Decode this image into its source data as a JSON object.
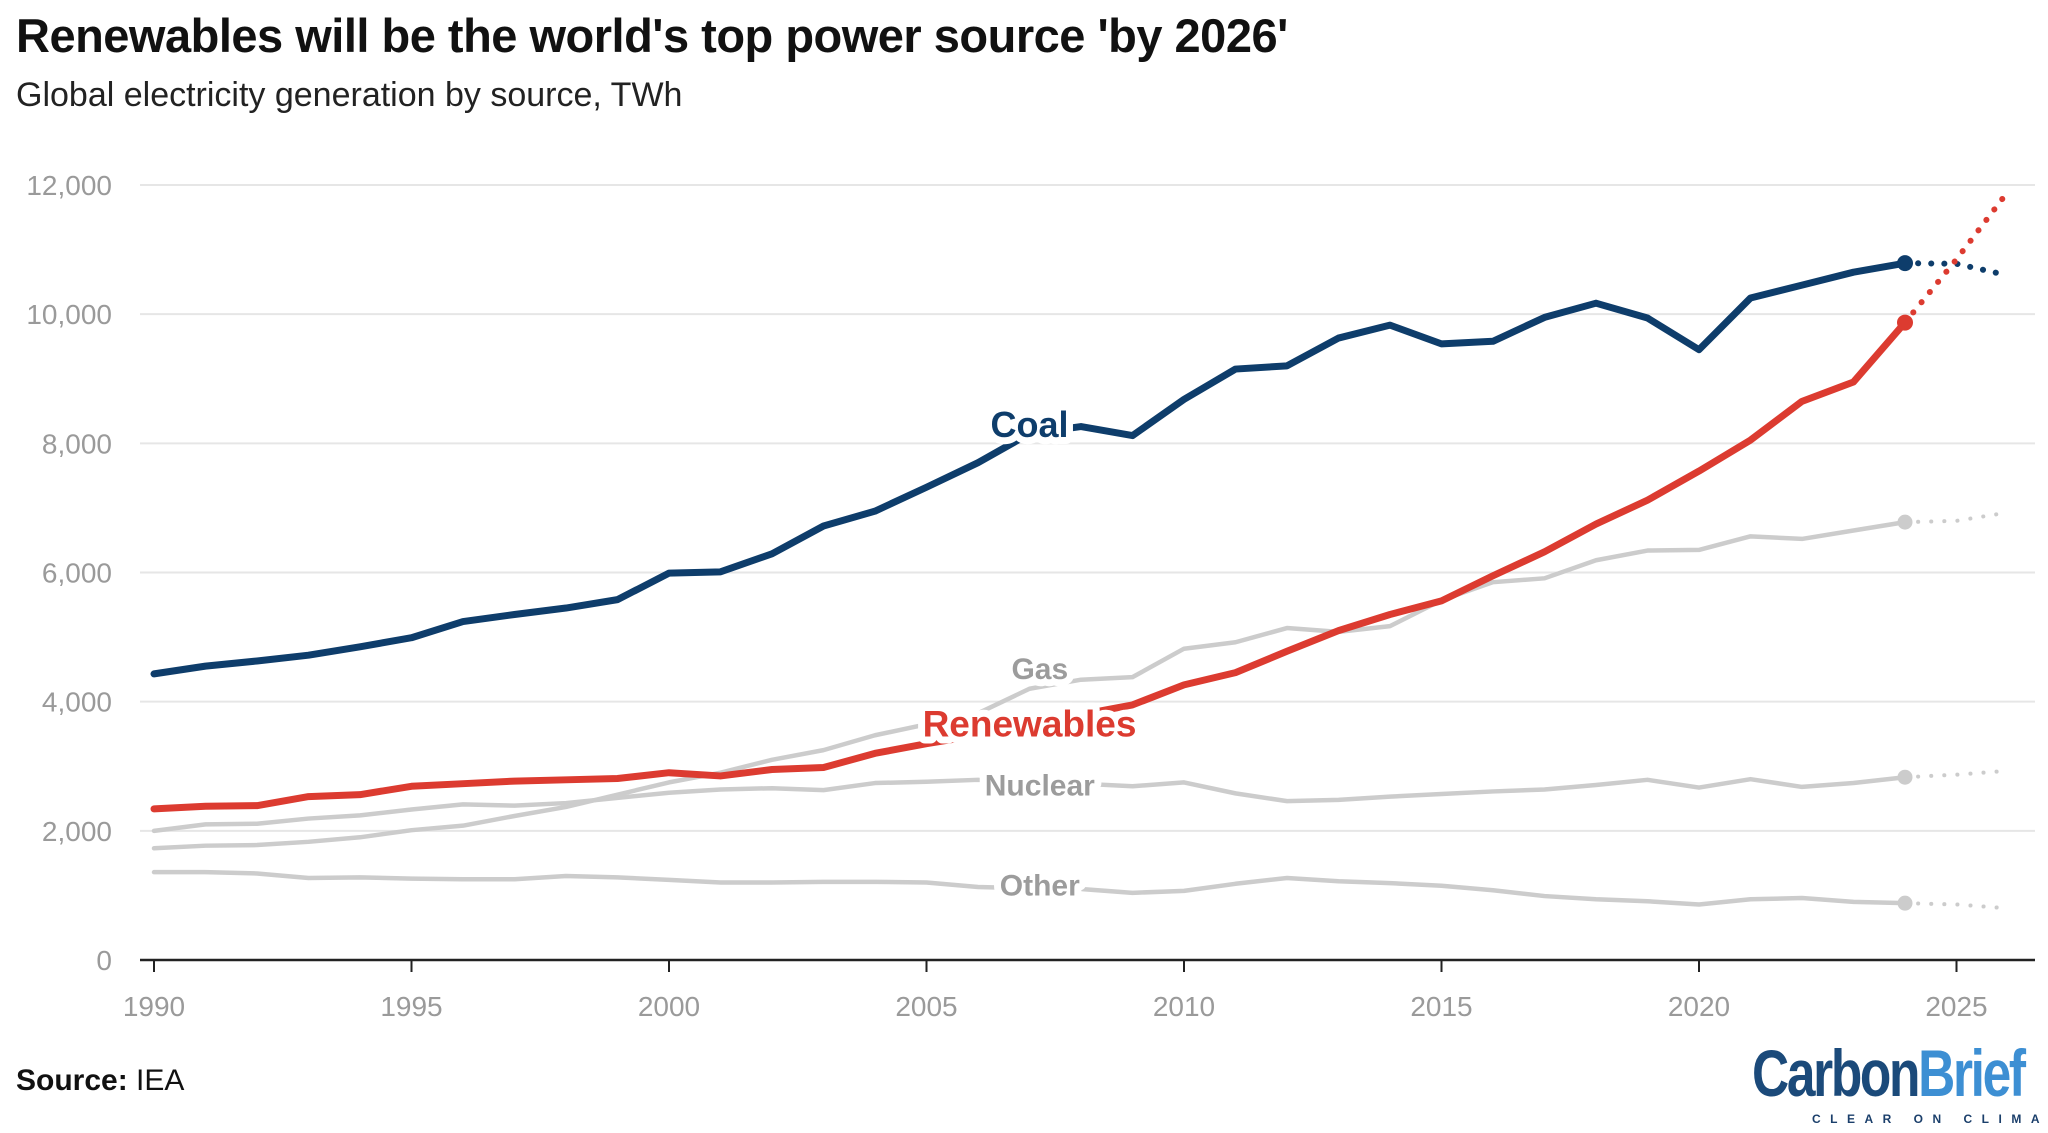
{
  "title": "Renewables will be the world's top power source 'by 2026'",
  "subtitle": "Global electricity generation by source, TWh",
  "source_label": "Source:",
  "source_value": "IEA",
  "logo": {
    "word1": "Carbon",
    "word2": "Brief",
    "tagline": "CLEAR ON CLIMATE"
  },
  "chart_data": {
    "type": "line",
    "title": "Renewables will be the world's top power source 'by 2026'",
    "ylabel": "Global electricity generation by source, TWh",
    "xlim": [
      1990,
      2026.5
    ],
    "ylim": [
      0,
      12000
    ],
    "grid": true,
    "x_ticks": [
      1990,
      1995,
      2000,
      2005,
      2010,
      2015,
      2020,
      2025
    ],
    "y_ticks": [
      0,
      2000,
      4000,
      6000,
      8000,
      10000,
      12000
    ],
    "y_tick_labels": [
      "0",
      "2,000",
      "4,000",
      "6,000",
      "8,000",
      "10,000",
      "12,000"
    ],
    "x": [
      1990,
      1991,
      1992,
      1993,
      1994,
      1995,
      1996,
      1997,
      1998,
      1999,
      2000,
      2001,
      2002,
      2003,
      2004,
      2005,
      2006,
      2007,
      2008,
      2009,
      2010,
      2011,
      2012,
      2013,
      2014,
      2015,
      2016,
      2017,
      2018,
      2019,
      2020,
      2021,
      2022,
      2023,
      2024
    ],
    "forecast_x": [
      2024,
      2025,
      2026
    ],
    "series": [
      {
        "name": "Coal",
        "color": "#0e3d6b",
        "highlight": true,
        "values": [
          4430,
          4550,
          4630,
          4720,
          4850,
          4990,
          5240,
          5350,
          5450,
          5580,
          5990,
          6010,
          6290,
          6720,
          6950,
          7320,
          7700,
          8150,
          8260,
          8120,
          8680,
          9150,
          9200,
          9630,
          9830,
          9540,
          9580,
          9950,
          10170,
          9940,
          9450,
          10250,
          10450,
          10650,
          10790
        ],
        "forecast": [
          10790,
          10780,
          10600
        ]
      },
      {
        "name": "Gas",
        "color": "#cccccc",
        "label_color": "#9c9c9c",
        "values": [
          1730,
          1770,
          1780,
          1830,
          1900,
          2010,
          2080,
          2230,
          2370,
          2560,
          2750,
          2900,
          3100,
          3250,
          3480,
          3650,
          3820,
          4200,
          4340,
          4380,
          4820,
          4920,
          5140,
          5080,
          5170,
          5570,
          5850,
          5910,
          6190,
          6340,
          6350,
          6560,
          6520,
          6650,
          6780
        ],
        "forecast": [
          6780,
          6800,
          6930
        ]
      },
      {
        "name": "Nuclear",
        "color": "#cccccc",
        "label_color": "#9c9c9c",
        "values": [
          2000,
          2100,
          2110,
          2190,
          2240,
          2330,
          2410,
          2390,
          2430,
          2510,
          2590,
          2640,
          2660,
          2630,
          2740,
          2760,
          2790,
          2720,
          2730,
          2690,
          2750,
          2580,
          2460,
          2480,
          2530,
          2570,
          2610,
          2640,
          2710,
          2790,
          2670,
          2800,
          2680,
          2740,
          2830
        ],
        "forecast": [
          2830,
          2870,
          2930
        ]
      },
      {
        "name": "Other",
        "color": "#cccccc",
        "label_color": "#9c9c9c",
        "values": [
          1360,
          1360,
          1340,
          1270,
          1280,
          1260,
          1250,
          1250,
          1300,
          1280,
          1240,
          1200,
          1200,
          1210,
          1210,
          1200,
          1130,
          1110,
          1100,
          1040,
          1070,
          1180,
          1270,
          1220,
          1190,
          1150,
          1080,
          990,
          940,
          910,
          860,
          940,
          960,
          900,
          880
        ],
        "forecast": [
          880,
          860,
          800
        ]
      },
      {
        "name": "Renewables",
        "color": "#dc3b30",
        "highlight": true,
        "values": [
          2340,
          2380,
          2390,
          2530,
          2560,
          2690,
          2730,
          2770,
          2790,
          2810,
          2900,
          2850,
          2950,
          2980,
          3200,
          3350,
          3480,
          3650,
          3800,
          3950,
          4260,
          4450,
          4780,
          5100,
          5350,
          5560,
          5950,
          6320,
          6750,
          7120,
          7570,
          8050,
          8650,
          8950,
          9870
        ],
        "forecast": [
          9870,
          10850,
          11900
        ]
      }
    ]
  }
}
